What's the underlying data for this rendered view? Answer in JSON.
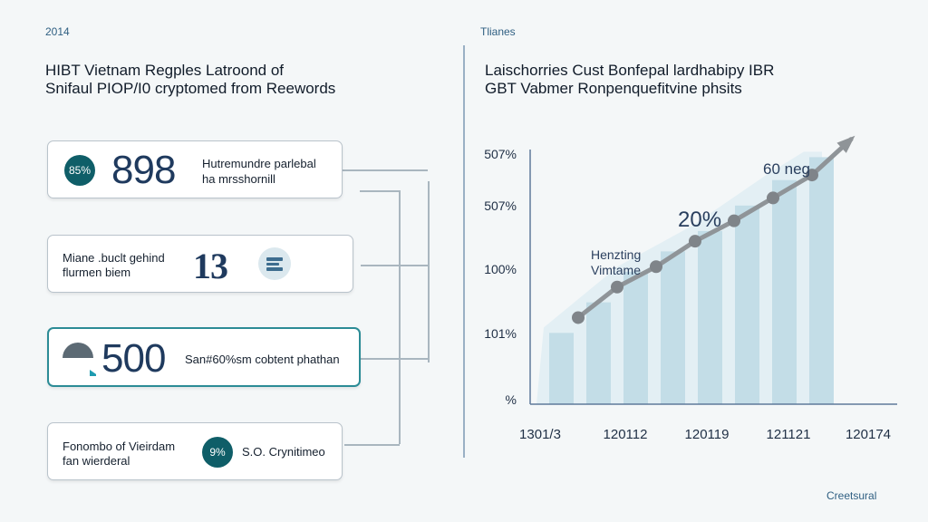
{
  "left_panel": {
    "year_label": "2014",
    "title_line1": "HIBT Vietnam Regples Latroond of",
    "title_line2": "Snifaul PIOP/I0 cryptomed from Reewords",
    "cards": [
      {
        "badge": "85%",
        "number": "898",
        "text1": "Hutremundre parlebal",
        "text2": "ha mrsshornill"
      },
      {
        "text1": "Miane .buclt gehind",
        "text2": "flurmen biem",
        "number": "13"
      },
      {
        "number": "500",
        "text1": "San#60%sm cobtent phathan"
      },
      {
        "text1": "Fonombo of Vieirdam",
        "text2": "fan wierderal",
        "badge": "9%",
        "text3": "S.O. Crynitimeo"
      }
    ]
  },
  "right_panel": {
    "top_label": "Tlianes",
    "title_line1": "Laischorries Cust Bonfepal lardhabipy IBR",
    "title_line2": "GBT Vabmer Ronpenquefitvine phsits",
    "footer": "Creetsural"
  },
  "chart_data": {
    "type": "bar",
    "title": "",
    "categories": [
      "1301/3",
      "120112",
      "120119",
      "121121",
      "120174"
    ],
    "bar_values": [
      0.28,
      0.4,
      0.52,
      0.6,
      0.68,
      0.78,
      0.88,
      0.97
    ],
    "trend_points": [
      0.34,
      0.46,
      0.54,
      0.64,
      0.72,
      0.81,
      0.9,
      1.04
    ],
    "y_tick_labels": [
      "507%",
      "507%",
      "100%",
      "101%",
      "%"
    ],
    "annotations": {
      "top_right": "60 neg",
      "middle": "20%",
      "left_line1": "Henzting",
      "left_line2": "Vimtame"
    },
    "colors": {
      "bars": "#c3dde7",
      "area": "#e3eff4",
      "trend": "#8f9498",
      "axis": "#5e7a9a"
    }
  }
}
